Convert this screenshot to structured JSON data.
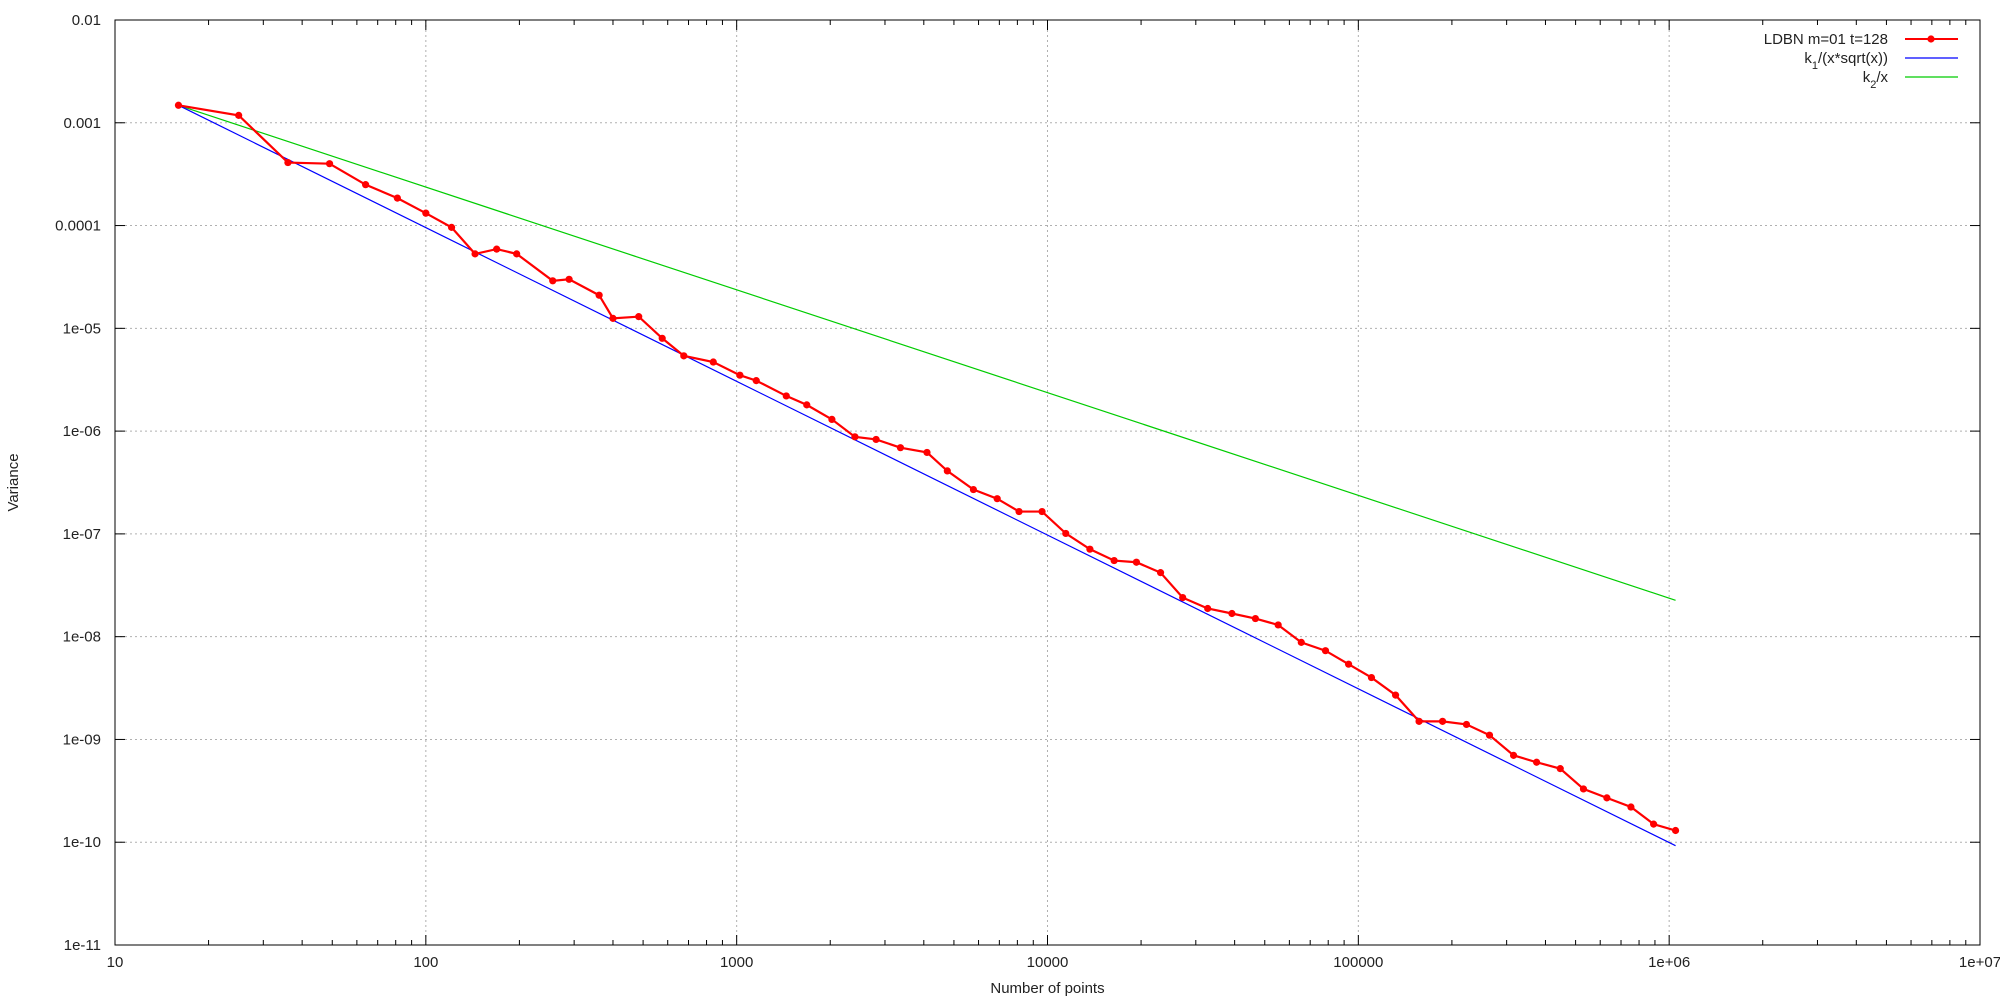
{
  "chart_data": {
    "type": "line",
    "title": "",
    "xlabel": "Number of points",
    "ylabel": "Variance",
    "x_scale": "log",
    "y_scale": "log",
    "xlim": [
      10,
      10000000
    ],
    "ylim": [
      1e-11,
      0.01
    ],
    "grid": true,
    "legend_position": "top-right",
    "x_ticks": [
      10,
      100,
      1000,
      10000,
      100000,
      1000000,
      10000000
    ],
    "x_tick_labels": [
      "10",
      "100",
      "1000",
      "10000",
      "100000",
      "1e+06",
      "1e+07"
    ],
    "y_ticks": [
      0.01,
      0.001,
      0.0001,
      1e-05,
      1e-06,
      1e-07,
      1e-08,
      1e-09,
      1e-10,
      1e-11
    ],
    "y_tick_labels": [
      "0.01",
      "0.001",
      "0.0001",
      "1e-05",
      "1e-06",
      "1e-07",
      "1e-08",
      "1e-09",
      "1e-10",
      "1e-11"
    ],
    "series": [
      {
        "name": "LDBN m=01 t=128",
        "name_text": "LDBN m=01 t=128",
        "color": "#ff0000",
        "markers": true,
        "points": [
          [
            16,
            0.00148
          ],
          [
            25,
            0.00118
          ],
          [
            36,
            0.00041
          ],
          [
            49,
            0.0004
          ],
          [
            64,
            0.00025
          ],
          [
            81,
            0.000185
          ],
          [
            100,
            0.000132
          ],
          [
            121,
            9.6e-05
          ],
          [
            144,
            5.3e-05
          ],
          [
            169,
            5.9e-05
          ],
          [
            196,
            5.3e-05
          ],
          [
            256,
            2.9e-05
          ],
          [
            289,
            3e-05
          ],
          [
            361,
            2.1e-05
          ],
          [
            400,
            1.25e-05
          ],
          [
            484,
            1.3e-05
          ],
          [
            576,
            8e-06
          ],
          [
            676,
            5.4e-06
          ],
          [
            841,
            4.7e-06
          ],
          [
            1024,
            3.5e-06
          ],
          [
            1156,
            3.1e-06
          ],
          [
            1444,
            2.2e-06
          ],
          [
            1681,
            1.8e-06
          ],
          [
            2025,
            1.3e-06
          ],
          [
            2401,
            8.8e-07
          ],
          [
            2809,
            8.3e-07
          ],
          [
            3364,
            6.9e-07
          ],
          [
            4096,
            6.2e-07
          ],
          [
            4761,
            4.1e-07
          ],
          [
            5776,
            2.7e-07
          ],
          [
            6889,
            2.2e-07
          ],
          [
            8100,
            1.65e-07
          ],
          [
            9604,
            1.65e-07
          ],
          [
            11449,
            1.01e-07
          ],
          [
            13689,
            7.1e-08
          ],
          [
            16384,
            5.5e-08
          ],
          [
            19321,
            5.3e-08
          ],
          [
            23104,
            4.2e-08
          ],
          [
            27225,
            2.4e-08
          ],
          [
            32761,
            1.88e-08
          ],
          [
            39204,
            1.68e-08
          ],
          [
            46656,
            1.5e-08
          ],
          [
            55225,
            1.3e-08
          ],
          [
            65536,
            8.8e-09
          ],
          [
            78400,
            7.3e-09
          ],
          [
            93025,
            5.4e-09
          ],
          [
            110224,
            4e-09
          ],
          [
            131769,
            2.7e-09
          ],
          [
            156816,
            1.5e-09
          ],
          [
            186624,
            1.5e-09
          ],
          [
            222784,
            1.4e-09
          ],
          [
            264196,
            1.1e-09
          ],
          [
            315844,
            7e-10
          ],
          [
            374544,
            6e-10
          ],
          [
            446224,
            5.2e-10
          ],
          [
            529984,
            3.3e-10
          ],
          [
            630436,
            2.7e-10
          ],
          [
            753424,
            2.2e-10
          ],
          [
            891136,
            1.5e-10
          ],
          [
            1048576,
            1.3e-10
          ]
        ]
      },
      {
        "name": "k_1/(x*sqrt(x))",
        "name_main": "k",
        "name_sub": "1",
        "name_rest": "/(x*sqrt(x))",
        "color": "#0000ff",
        "markers": false,
        "points": [
          [
            16,
            0.00148
          ],
          [
            1048576,
            9.25e-11
          ]
        ]
      },
      {
        "name": "k_2/x",
        "name_main": "k",
        "name_sub": "2",
        "name_rest": "/x",
        "color": "#00cc00",
        "markers": false,
        "points": [
          [
            16,
            0.00148
          ],
          [
            1048576,
            2.26e-08
          ]
        ]
      }
    ]
  }
}
